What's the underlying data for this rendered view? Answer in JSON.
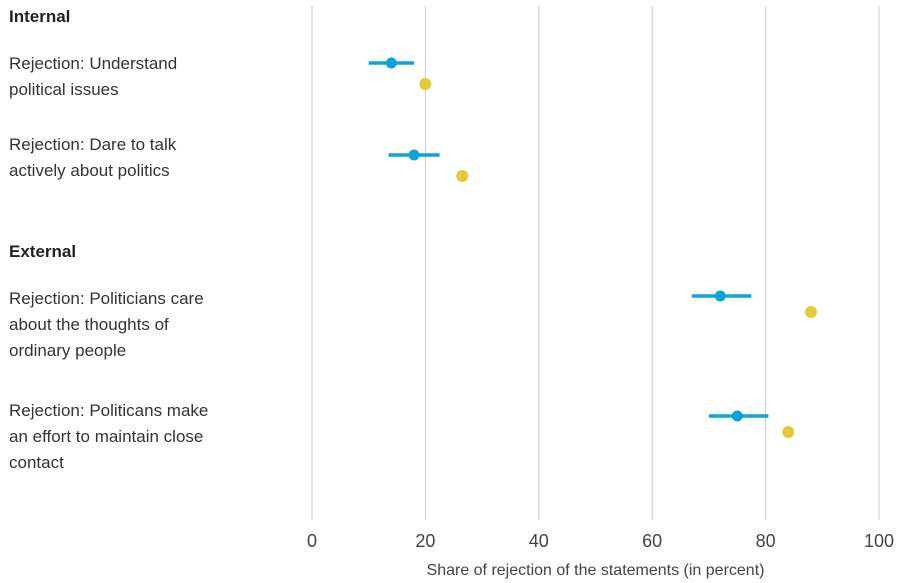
{
  "chart_data": {
    "type": "dot-errorbar",
    "xlabel": "Share of rejection of the statements (in percent)",
    "xlim": [
      0,
      100
    ],
    "xticks": [
      0,
      20,
      40,
      60,
      80,
      100
    ],
    "grid": "vertical",
    "colors": {
      "blue": "#0fa3d8",
      "yellow": "#e6c938",
      "grid": "#cccccc"
    },
    "groups": [
      {
        "heading": "Internal",
        "items": [
          {
            "label": "Rejection: Understand political issues",
            "blue": {
              "value": 14,
              "low": 10,
              "high": 18
            },
            "yellow": {
              "value": 20
            }
          },
          {
            "label": "Rejection: Dare to talk actively about politics",
            "blue": {
              "value": 18,
              "low": 13.5,
              "high": 22.5
            },
            "yellow": {
              "value": 26.5
            }
          }
        ]
      },
      {
        "heading": "External",
        "items": [
          {
            "label": "Rejection: Politicians care about the thoughts of ordinary people",
            "blue": {
              "value": 72,
              "low": 67,
              "high": 77.5
            },
            "yellow": {
              "value": 88
            }
          },
          {
            "label": "Rejection: Politicans make an effort to maintain close contact",
            "blue": {
              "value": 75,
              "low": 70,
              "high": 80.5
            },
            "yellow": {
              "value": 84
            }
          }
        ]
      }
    ]
  }
}
